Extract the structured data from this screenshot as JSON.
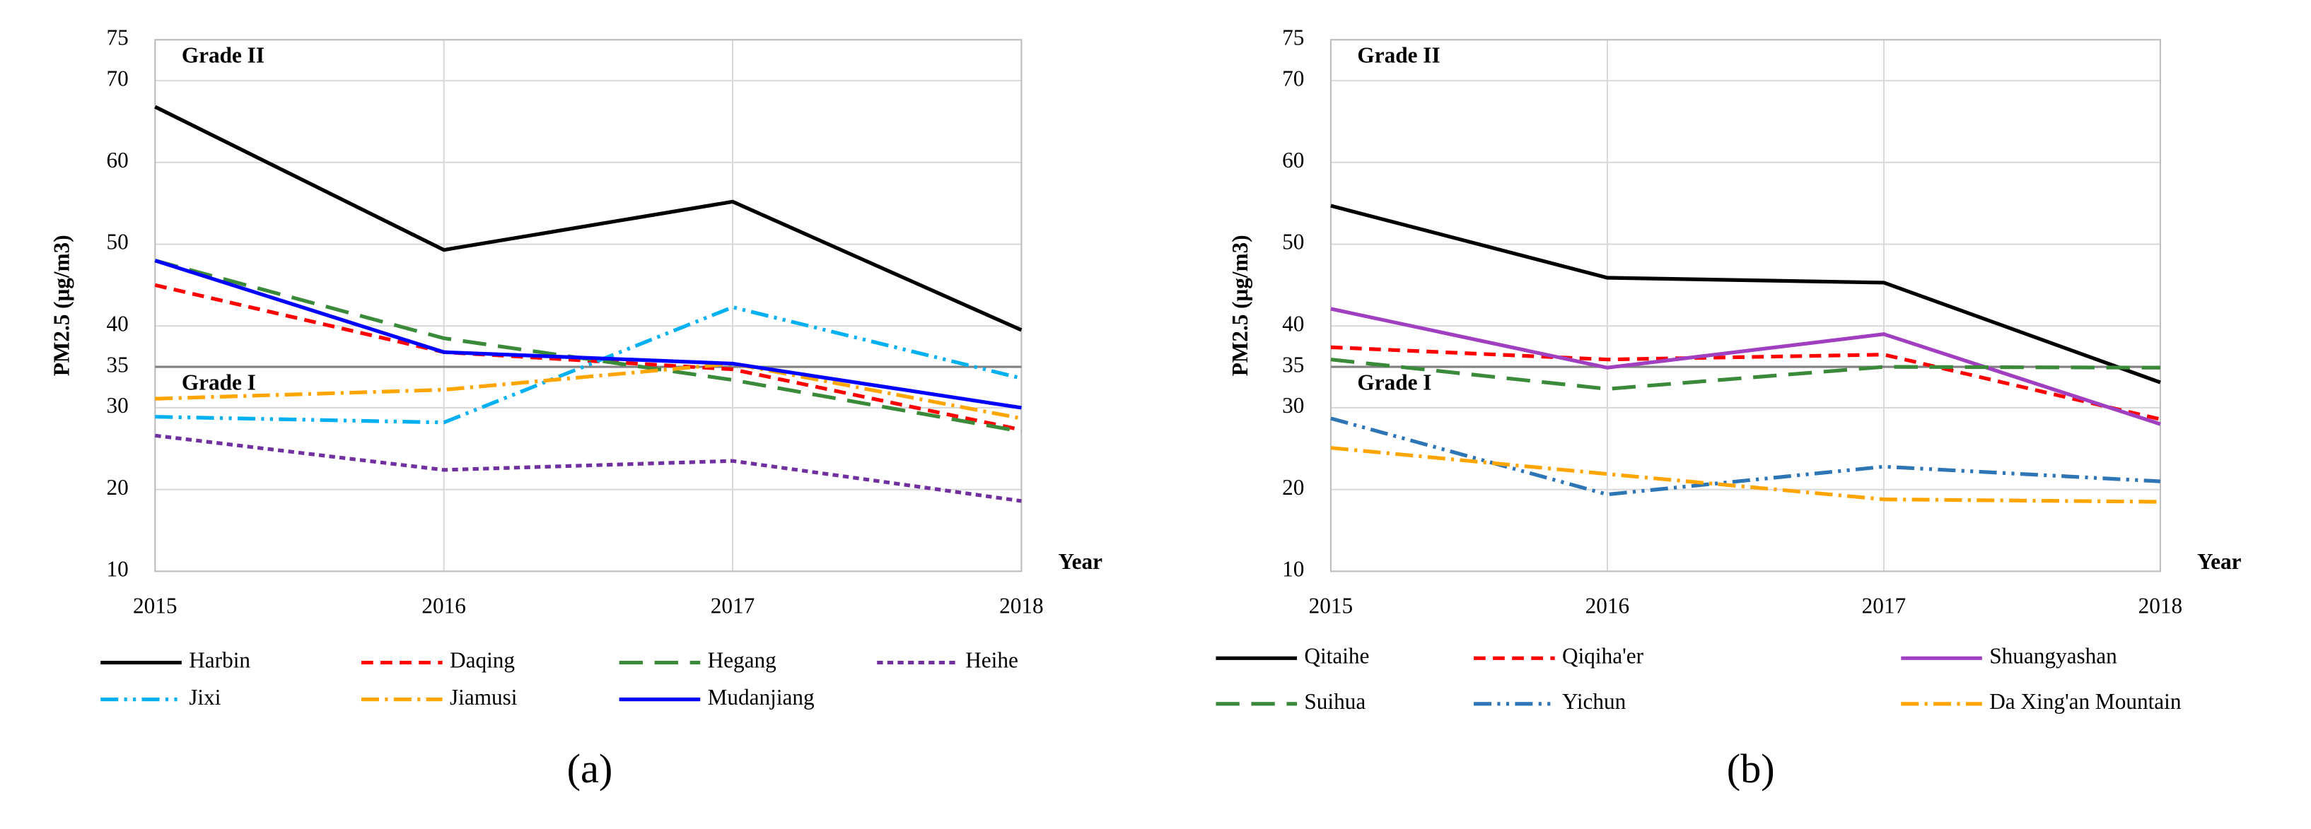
{
  "chart_data": [
    {
      "type": "line",
      "panel_label": "(a)",
      "y_label": "PM2.5 (μg/m3)",
      "x_label": "Year",
      "annotations": [
        "Grade II",
        "Grade I"
      ],
      "reference_line": 35,
      "x": [
        2015,
        2016,
        2017,
        2018
      ],
      "xlim": [
        2015,
        2018
      ],
      "xticks": [
        2015,
        2016,
        2017,
        2018
      ],
      "ylim": [
        10,
        75
      ],
      "yticks": [
        10,
        20,
        30,
        35,
        40,
        50,
        60,
        70,
        75
      ],
      "grid": true,
      "series": [
        {
          "name": "Harbin",
          "color": "#000000",
          "dash": "solid",
          "values": [
            66.8,
            49.3,
            55.2,
            39.5
          ]
        },
        {
          "name": "Daqing",
          "color": "#ff0000",
          "dash": "dashed",
          "values": [
            45,
            36.8,
            34.7,
            27.3
          ]
        },
        {
          "name": "Hegang",
          "color": "#3a8a3a",
          "dash": "longdash",
          "values": [
            48,
            38.5,
            33.4,
            27.1
          ]
        },
        {
          "name": "Heihe",
          "color": "#7030a0",
          "dash": "dotted",
          "values": [
            26.6,
            22.4,
            23.5,
            18.6
          ]
        },
        {
          "name": "Jixi",
          "color": "#00b0f0",
          "dash": "dashdotdot",
          "values": [
            28.9,
            28.2,
            42.3,
            33.6
          ]
        },
        {
          "name": "Jiamusi",
          "color": "#ffa500",
          "dash": "dashdot",
          "values": [
            31.1,
            32.2,
            35.4,
            28.7
          ]
        },
        {
          "name": "Mudanjiang",
          "color": "#0000ff",
          "dash": "solid",
          "values": [
            48,
            36.8,
            35.4,
            30
          ]
        }
      ]
    },
    {
      "type": "line",
      "panel_label": "(b)",
      "y_label": "PM2.5 (μg/m3)",
      "x_label": "Year",
      "annotations": [
        "Grade II",
        "Grade I"
      ],
      "reference_line": 35,
      "x": [
        2015,
        2016,
        2017,
        2018
      ],
      "xlim": [
        2015,
        2018
      ],
      "xticks": [
        2015,
        2016,
        2017,
        2018
      ],
      "ylim": [
        10,
        75
      ],
      "yticks": [
        10,
        20,
        30,
        35,
        40,
        50,
        60,
        70,
        75
      ],
      "grid": true,
      "series": [
        {
          "name": "Qitaihe",
          "color": "#000000",
          "dash": "solid",
          "values": [
            54.7,
            45.9,
            45.3,
            33.1
          ]
        },
        {
          "name": "Qiqiha'er",
          "color": "#ff0000",
          "dash": "dashed",
          "values": [
            37.4,
            35.9,
            36.5,
            28.6
          ]
        },
        {
          "name": "Shuangyashan",
          "color": "#a040c0",
          "dash": "solid",
          "values": [
            42.1,
            34.9,
            39,
            28
          ]
        },
        {
          "name": "Suihua",
          "color": "#3a8a3a",
          "dash": "longdash",
          "values": [
            35.9,
            32.3,
            35,
            34.9
          ]
        },
        {
          "name": "Yichun",
          "color": "#2e75b6",
          "dash": "dashdotdot",
          "values": [
            28.7,
            19.4,
            22.8,
            21
          ]
        },
        {
          "name": "Da Xing'an Mountain",
          "color": "#ffa500",
          "dash": "dashdot",
          "values": [
            25.1,
            21.9,
            18.8,
            18.5
          ]
        }
      ]
    }
  ]
}
